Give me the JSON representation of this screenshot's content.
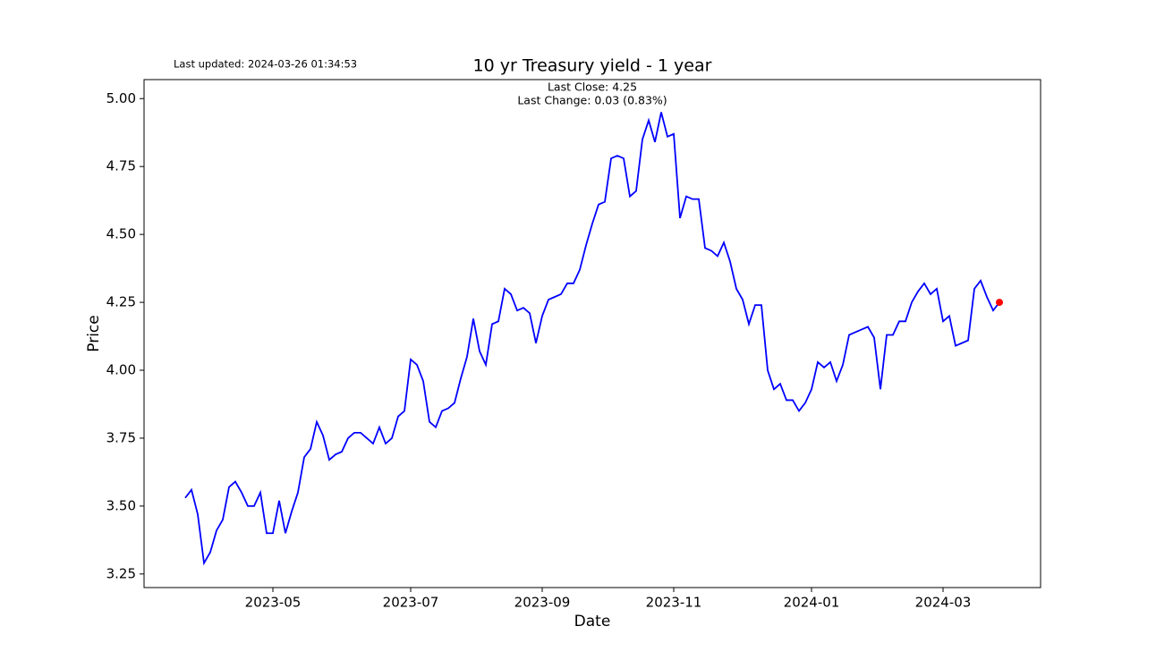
{
  "chart_data": {
    "type": "line",
    "title": "10 yr Treasury yield - 1 year",
    "updated": "Last updated: 2024-03-26 01:34:53",
    "annotations": [
      "Last Close: 4.25",
      "Last Change: 0.03 (0.83%)"
    ],
    "xlabel": "Date",
    "ylabel": "Price",
    "categories": [
      null,
      null,
      null,
      null,
      null,
      null,
      null,
      null,
      null,
      null,
      null,
      null,
      null,
      null,
      "2023-05",
      null,
      null,
      null,
      null,
      null,
      null,
      null,
      null,
      null,
      null,
      null,
      null,
      null,
      null,
      null,
      null,
      null,
      null,
      null,
      null,
      null,
      "2023-07",
      null,
      null,
      null,
      null,
      null,
      null,
      null,
      null,
      null,
      null,
      null,
      null,
      null,
      null,
      null,
      null,
      null,
      null,
      null,
      null,
      "2023-09",
      null,
      null,
      null,
      null,
      null,
      null,
      null,
      null,
      null,
      null,
      null,
      null,
      null,
      null,
      null,
      null,
      null,
      null,
      null,
      null,
      "2023-11",
      null,
      null,
      null,
      null,
      null,
      null,
      null,
      null,
      null,
      null,
      null,
      null,
      null,
      null,
      null,
      null,
      null,
      null,
      null,
      null,
      null,
      "2024-01",
      null,
      null,
      null,
      null,
      null,
      null,
      null,
      null,
      null,
      null,
      null,
      null,
      null,
      null,
      null,
      null,
      null,
      null,
      null,
      null,
      "2024-03",
      null,
      null,
      null,
      null,
      null,
      null,
      null,
      null,
      null
    ],
    "series": [
      {
        "color": "#0000ff",
        "values": [
          3.53,
          3.56,
          3.47,
          3.29,
          3.33,
          3.41,
          3.45,
          3.57,
          3.59,
          3.55,
          3.5,
          3.5,
          3.55,
          3.4,
          3.4,
          3.52,
          3.4,
          3.48,
          3.55,
          3.68,
          3.71,
          3.81,
          3.76,
          3.67,
          3.69,
          3.7,
          3.75,
          3.77,
          3.77,
          3.75,
          3.73,
          3.79,
          3.73,
          3.75,
          3.83,
          3.85,
          4.04,
          4.02,
          3.96,
          3.81,
          3.79,
          3.85,
          3.86,
          3.88,
          3.97,
          4.05,
          4.19,
          4.07,
          4.02,
          4.17,
          4.18,
          4.3,
          4.28,
          4.22,
          4.23,
          4.21,
          4.1,
          4.2,
          4.26,
          4.27,
          4.28,
          4.32,
          4.32,
          4.37,
          4.46,
          4.54,
          4.61,
          4.62,
          4.78,
          4.79,
          4.78,
          4.64,
          4.66,
          4.85,
          4.92,
          4.84,
          4.95,
          4.86,
          4.87,
          4.56,
          4.64,
          4.63,
          4.63,
          4.45,
          4.44,
          4.42,
          4.47,
          4.4,
          4.3,
          4.26,
          4.17,
          4.24,
          4.24,
          4.0,
          3.93,
          3.95,
          3.89,
          3.89,
          3.85,
          3.88,
          3.93,
          4.03,
          4.01,
          4.03,
          3.96,
          4.02,
          4.13,
          4.14,
          4.15,
          4.16,
          4.12,
          3.93,
          4.13,
          4.13,
          4.18,
          4.18,
          4.25,
          4.29,
          4.32,
          4.28,
          4.3,
          4.18,
          4.2,
          4.09,
          4.1,
          4.11,
          4.3,
          4.33,
          4.27,
          4.22,
          4.25
        ]
      }
    ],
    "last_marker_color": "#ff0000",
    "ylim": [
      3.2,
      5.07
    ],
    "yticks": [
      3.25,
      {
        "value": 3.5,
        "label": "3.50"
      },
      3.75,
      {
        "value": 4.0,
        "label": "4.00"
      },
      4.25,
      {
        "value": 4.5,
        "label": "4.50"
      },
      4.75,
      {
        "value": 5.0,
        "label": "5.00"
      }
    ],
    "grid": false
  }
}
